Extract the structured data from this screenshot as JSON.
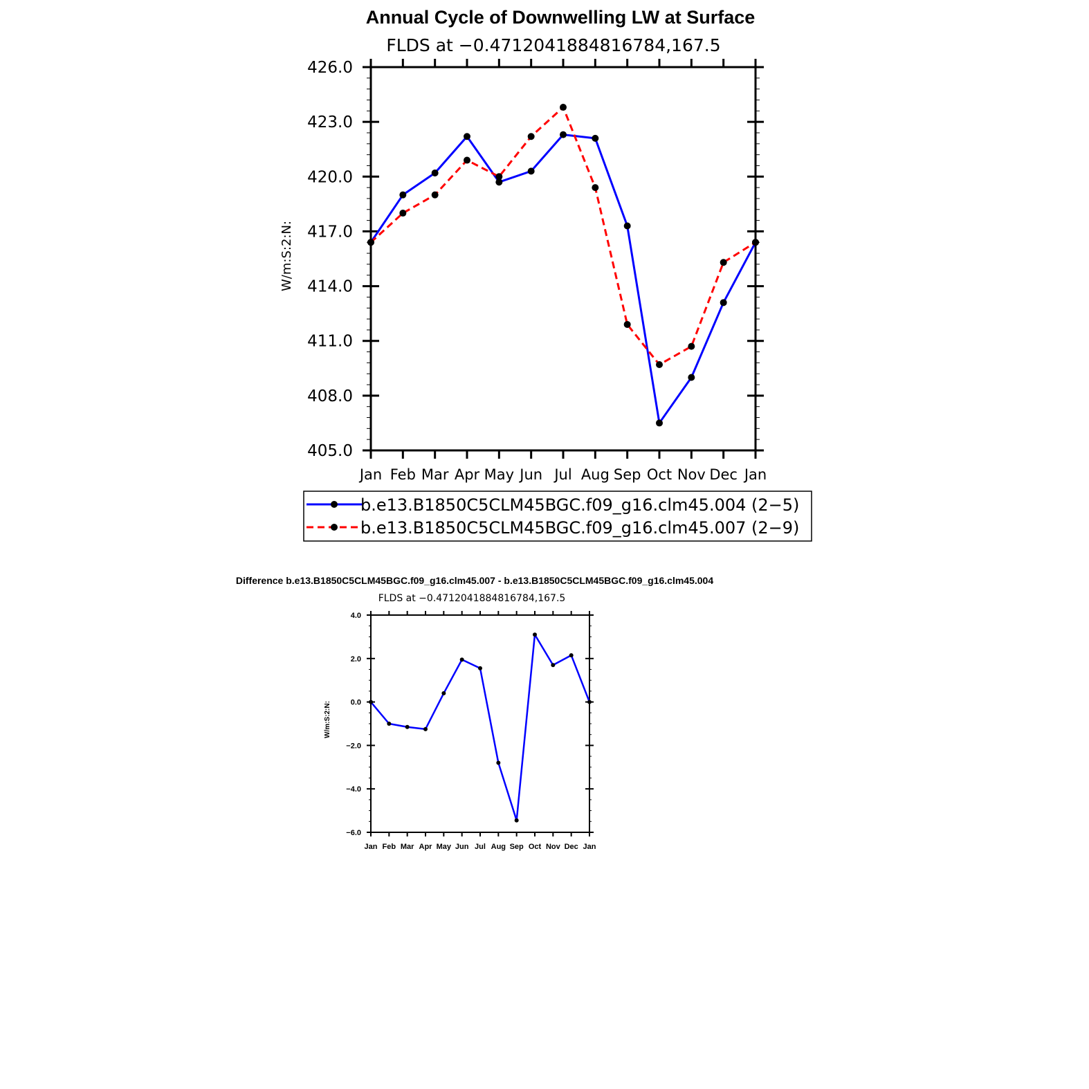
{
  "chart_data": [
    {
      "type": "line",
      "title": "Annual Cycle of Downwelling LW at Surface",
      "subtitle": "FLDS at −0.4712041884816784,167.5",
      "ylabel": "W/m:S:2:N:",
      "xlabel": "",
      "categories": [
        "Jan",
        "Feb",
        "Mar",
        "Apr",
        "May",
        "Jun",
        "Jul",
        "Aug",
        "Sep",
        "Oct",
        "Nov",
        "Dec",
        "Jan"
      ],
      "ylim": [
        405.0,
        426.0
      ],
      "yticks": [
        "405.0",
        "408.0",
        "411.0",
        "414.0",
        "417.0",
        "420.0",
        "423.0",
        "426.0"
      ],
      "ytick_values": [
        405,
        408,
        411,
        414,
        417,
        420,
        423,
        426
      ],
      "legend_position": "bottom",
      "series": [
        {
          "name": "b.e13.B1850C5CLM45BGC.f09_g16.clm45.004 (2−5)",
          "color": "#0000ff",
          "dash": "solid",
          "values": [
            416.4,
            419.0,
            420.2,
            422.2,
            419.7,
            420.3,
            422.3,
            422.1,
            417.3,
            406.5,
            409.0,
            413.1,
            416.4
          ]
        },
        {
          "name": "b.e13.B1850C5CLM45BGC.f09_g16.clm45.007 (2−9)",
          "color": "#ff0000",
          "dash": "dashed",
          "values": [
            416.4,
            418.0,
            419.0,
            420.9,
            420.0,
            422.2,
            423.8,
            419.4,
            411.9,
            409.7,
            410.7,
            415.3,
            416.4
          ]
        }
      ]
    },
    {
      "type": "line",
      "title": "Difference b.e13.B1850C5CLM45BGC.f09_g16.clm45.007 - b.e13.B1850C5CLM45BGC.f09_g16.clm45.004",
      "subtitle": "FLDS at −0.4712041884816784,167.5",
      "ylabel": "W/m:S:2:N:",
      "xlabel": "",
      "categories": [
        "Jan",
        "Feb",
        "Mar",
        "Apr",
        "May",
        "Jun",
        "Jul",
        "Aug",
        "Sep",
        "Oct",
        "Nov",
        "Dec",
        "Jan"
      ],
      "ylim": [
        -6.0,
        4.0
      ],
      "yticks": [
        "−6.0",
        "−4.0",
        "−2.0",
        "0.0",
        "2.0",
        "4.0"
      ],
      "ytick_values": [
        -6,
        -4,
        -2,
        0,
        2,
        4
      ],
      "series": [
        {
          "color": "#0000ff",
          "dash": "solid",
          "values": [
            0.0,
            -1.0,
            -1.15,
            -1.25,
            0.4,
            1.95,
            1.55,
            -2.8,
            -5.45,
            3.1,
            1.7,
            2.15,
            0.0
          ]
        }
      ]
    }
  ]
}
